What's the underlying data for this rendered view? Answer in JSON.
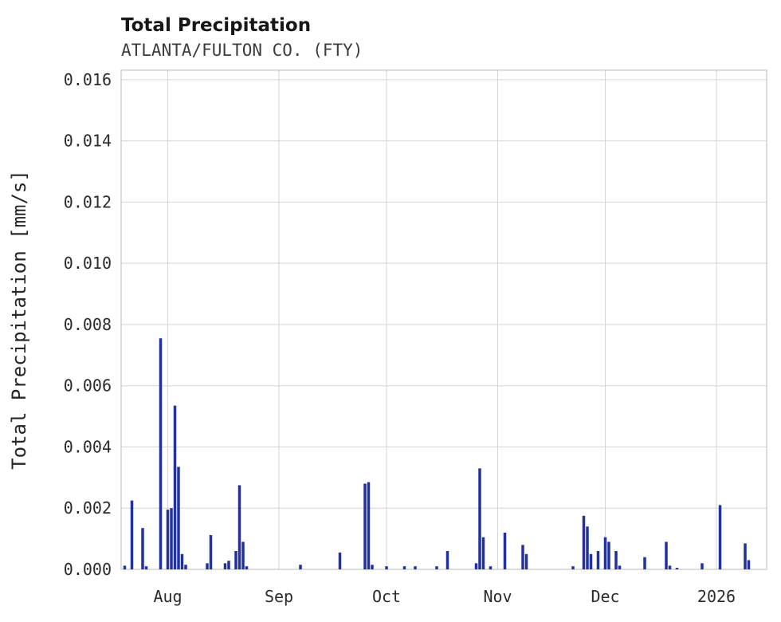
{
  "chart_data": {
    "type": "bar",
    "title": "Total Precipitation",
    "subtitle": "ATLANTA/FULTON CO. (FTY)",
    "xlabel": "",
    "ylabel": "Total Precipitation [mm/s]",
    "x_domain": [
      "2025-07-19",
      "2026-01-15"
    ],
    "ylim": [
      0,
      0.01631
    ],
    "grid": true,
    "legend": "none",
    "bar_color": "#2132a0",
    "grid_color": "#d5d5d5",
    "frame_color": "#c9c9c9",
    "y_ticks": [
      {
        "value": 0.0,
        "label": "0.000"
      },
      {
        "value": 0.002,
        "label": "0.002"
      },
      {
        "value": 0.004,
        "label": "0.004"
      },
      {
        "value": 0.006,
        "label": "0.006"
      },
      {
        "value": 0.008,
        "label": "0.008"
      },
      {
        "value": 0.01,
        "label": "0.010"
      },
      {
        "value": 0.012,
        "label": "0.012"
      },
      {
        "value": 0.014,
        "label": "0.014"
      },
      {
        "value": 0.016,
        "label": "0.016"
      }
    ],
    "x_ticks": [
      {
        "date": "2025-08-01",
        "label": "Aug"
      },
      {
        "date": "2025-09-01",
        "label": "Sep"
      },
      {
        "date": "2025-10-01",
        "label": "Oct"
      },
      {
        "date": "2025-11-01",
        "label": "Nov"
      },
      {
        "date": "2025-12-01",
        "label": "Dec"
      },
      {
        "date": "2026-01-01",
        "label": "2026"
      }
    ],
    "points": [
      {
        "date": "2025-07-20",
        "value": 0.00012
      },
      {
        "date": "2025-07-22",
        "value": 0.00225
      },
      {
        "date": "2025-07-25",
        "value": 0.00135
      },
      {
        "date": "2025-07-26",
        "value": 0.0001
      },
      {
        "date": "2025-07-30",
        "value": 0.00755
      },
      {
        "date": "2025-08-01",
        "value": 0.00195
      },
      {
        "date": "2025-08-02",
        "value": 0.002
      },
      {
        "date": "2025-08-03",
        "value": 0.00535
      },
      {
        "date": "2025-08-04",
        "value": 0.00335
      },
      {
        "date": "2025-08-05",
        "value": 0.0005
      },
      {
        "date": "2025-08-06",
        "value": 0.00015
      },
      {
        "date": "2025-08-12",
        "value": 0.0002
      },
      {
        "date": "2025-08-13",
        "value": 0.00112
      },
      {
        "date": "2025-08-17",
        "value": 0.0002
      },
      {
        "date": "2025-08-18",
        "value": 0.00028
      },
      {
        "date": "2025-08-20",
        "value": 0.0006
      },
      {
        "date": "2025-08-21",
        "value": 0.00275
      },
      {
        "date": "2025-08-22",
        "value": 0.0009
      },
      {
        "date": "2025-08-23",
        "value": 0.0001
      },
      {
        "date": "2025-09-07",
        "value": 0.00015
      },
      {
        "date": "2025-09-18",
        "value": 0.00055
      },
      {
        "date": "2025-09-25",
        "value": 0.0028
      },
      {
        "date": "2025-09-26",
        "value": 0.00285
      },
      {
        "date": "2025-09-27",
        "value": 0.00015
      },
      {
        "date": "2025-10-01",
        "value": 0.0001
      },
      {
        "date": "2025-10-06",
        "value": 0.0001
      },
      {
        "date": "2025-10-09",
        "value": 0.0001
      },
      {
        "date": "2025-10-15",
        "value": 0.0001
      },
      {
        "date": "2025-10-18",
        "value": 0.0006
      },
      {
        "date": "2025-10-26",
        "value": 0.0002
      },
      {
        "date": "2025-10-27",
        "value": 0.0033
      },
      {
        "date": "2025-10-28",
        "value": 0.00105
      },
      {
        "date": "2025-10-30",
        "value": 0.0001
      },
      {
        "date": "2025-11-03",
        "value": 0.0012
      },
      {
        "date": "2025-11-08",
        "value": 0.0008
      },
      {
        "date": "2025-11-09",
        "value": 0.0005
      },
      {
        "date": "2025-11-22",
        "value": 0.0001
      },
      {
        "date": "2025-11-25",
        "value": 0.00175
      },
      {
        "date": "2025-11-26",
        "value": 0.0014
      },
      {
        "date": "2025-11-27",
        "value": 0.0005
      },
      {
        "date": "2025-11-29",
        "value": 0.0006
      },
      {
        "date": "2025-12-01",
        "value": 0.00105
      },
      {
        "date": "2025-12-02",
        "value": 0.0009
      },
      {
        "date": "2025-12-04",
        "value": 0.0006
      },
      {
        "date": "2025-12-05",
        "value": 0.00012
      },
      {
        "date": "2025-12-12",
        "value": 0.0004
      },
      {
        "date": "2025-12-18",
        "value": 0.0009
      },
      {
        "date": "2025-12-19",
        "value": 0.00012
      },
      {
        "date": "2025-12-21",
        "value": 5e-05
      },
      {
        "date": "2025-12-28",
        "value": 0.0002
      },
      {
        "date": "2026-01-02",
        "value": 0.0021
      },
      {
        "date": "2026-01-09",
        "value": 0.00085
      },
      {
        "date": "2026-01-10",
        "value": 0.0003
      }
    ]
  }
}
